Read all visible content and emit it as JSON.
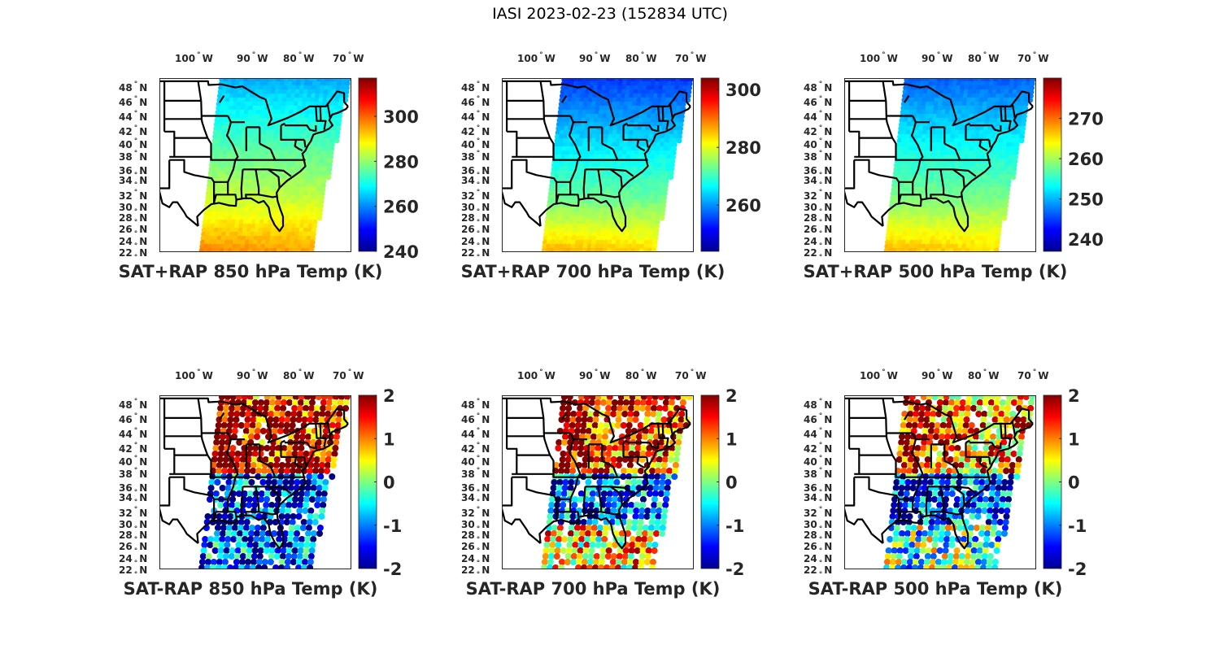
{
  "figure": {
    "title": "IASI 2023-02-23 (152834 UTC)"
  },
  "chart_data": [
    {
      "type": "heatmap",
      "title": "SAT+RAP 850 hPa Temp (K)",
      "colormap": "jet",
      "xticks": [
        "100° W",
        "90° W",
        "80° W",
        "70° W"
      ],
      "yticks": [
        "48° N",
        "46° N",
        "44° N",
        "42° N",
        "40° N",
        "38° N",
        "36° N",
        "34° N",
        "32° N",
        "30° N",
        "28° N",
        "26° N",
        "24° N",
        "22° N"
      ],
      "colorbar": {
        "range": [
          240,
          317
        ],
        "ticks": [
          240,
          260,
          280,
          300
        ],
        "tick_labels": [
          "240",
          "260",
          "280",
          "300"
        ]
      },
      "field": {
        "north": 262,
        "south": 292,
        "gulf": 297
      }
    },
    {
      "type": "heatmap",
      "title": "SAT+RAP 700 hPa Temp (K)",
      "colormap": "jet",
      "xticks": [
        "100° W",
        "90° W",
        "80° W",
        "70° W"
      ],
      "yticks": [
        "48° N",
        "46° N",
        "44° N",
        "42° N",
        "40° N",
        "38° N",
        "36° N",
        "34° N",
        "32° N",
        "30° N",
        "28° N",
        "26° N",
        "24° N",
        "22° N"
      ],
      "colorbar": {
        "range": [
          244,
          304
        ],
        "ticks": [
          260,
          280,
          300
        ],
        "tick_labels": [
          "260",
          "280",
          "300"
        ]
      },
      "field": {
        "north": 254,
        "south": 280,
        "gulf": 286
      }
    },
    {
      "type": "heatmap",
      "title": "SAT+RAP 500 hPa Temp (K)",
      "colormap": "jet",
      "xticks": [
        "100° W",
        "90° W",
        "80° W",
        "70° W"
      ],
      "yticks": [
        "48° N",
        "46° N",
        "44° N",
        "42° N",
        "40° N",
        "38° N",
        "36° N",
        "34° N",
        "32° N",
        "30° N",
        "28° N",
        "26° N",
        "24° N",
        "22° N"
      ],
      "colorbar": {
        "range": [
          237,
          280
        ],
        "ticks": [
          240,
          250,
          260,
          270
        ],
        "tick_labels": [
          "240",
          "250",
          "260",
          "270"
        ]
      },
      "field": {
        "north": 246,
        "south": 263,
        "gulf": 267
      }
    },
    {
      "type": "heatmap",
      "title": "SAT-RAP 850 hPa Temp (K)",
      "colormap": "jet",
      "xticks": [
        "100° W",
        "90° W",
        "80° W",
        "70° W"
      ],
      "yticks": [
        "48° N",
        "46° N",
        "44° N",
        "42° N",
        "40° N",
        "38° N",
        "36° N",
        "34° N",
        "32° N",
        "30° N",
        "28° N",
        "26° N",
        "24° N",
        "22° N"
      ],
      "colorbar": {
        "range": [
          -2,
          2
        ],
        "ticks": [
          -2,
          -1,
          0,
          1,
          2
        ],
        "tick_labels": [
          "-2",
          "-1",
          "0",
          "1",
          "2"
        ]
      },
      "field": {
        "north": 1.6,
        "south": -1.4,
        "gulf": -1.2
      }
    },
    {
      "type": "heatmap",
      "title": "SAT-RAP 700 hPa Temp (K)",
      "colormap": "jet",
      "xticks": [
        "100° W",
        "90° W",
        "80° W",
        "70° W"
      ],
      "yticks": [
        "48° N",
        "46° N",
        "44° N",
        "42° N",
        "40° N",
        "38° N",
        "36° N",
        "34° N",
        "32° N",
        "30° N",
        "28° N",
        "26° N",
        "24° N",
        "22° N"
      ],
      "colorbar": {
        "range": [
          -2,
          2
        ],
        "ticks": [
          -2,
          -1,
          0,
          1,
          2
        ],
        "tick_labels": [
          "-2",
          "-1",
          "0",
          "1",
          "2"
        ]
      },
      "field": {
        "north": 1.4,
        "south": -1.2,
        "gulf": 0.6
      }
    },
    {
      "type": "heatmap",
      "title": "SAT-RAP 500 hPa Temp (K)",
      "colormap": "jet",
      "xticks": [
        "100° W",
        "90° W",
        "80° W",
        "70° W"
      ],
      "yticks": [
        "48° N",
        "46° N",
        "44° N",
        "42° N",
        "40° N",
        "38° N",
        "36° N",
        "34° N",
        "32° N",
        "30° N",
        "28° N",
        "26° N",
        "24° N",
        "22° N"
      ],
      "colorbar": {
        "range": [
          -2,
          2
        ],
        "ticks": [
          -2,
          -1,
          0,
          1,
          2
        ],
        "tick_labels": [
          "-2",
          "-1",
          "0",
          "1",
          "2"
        ]
      },
      "field": {
        "north": 1.0,
        "south": -1.3,
        "gulf": -0.2
      }
    }
  ]
}
